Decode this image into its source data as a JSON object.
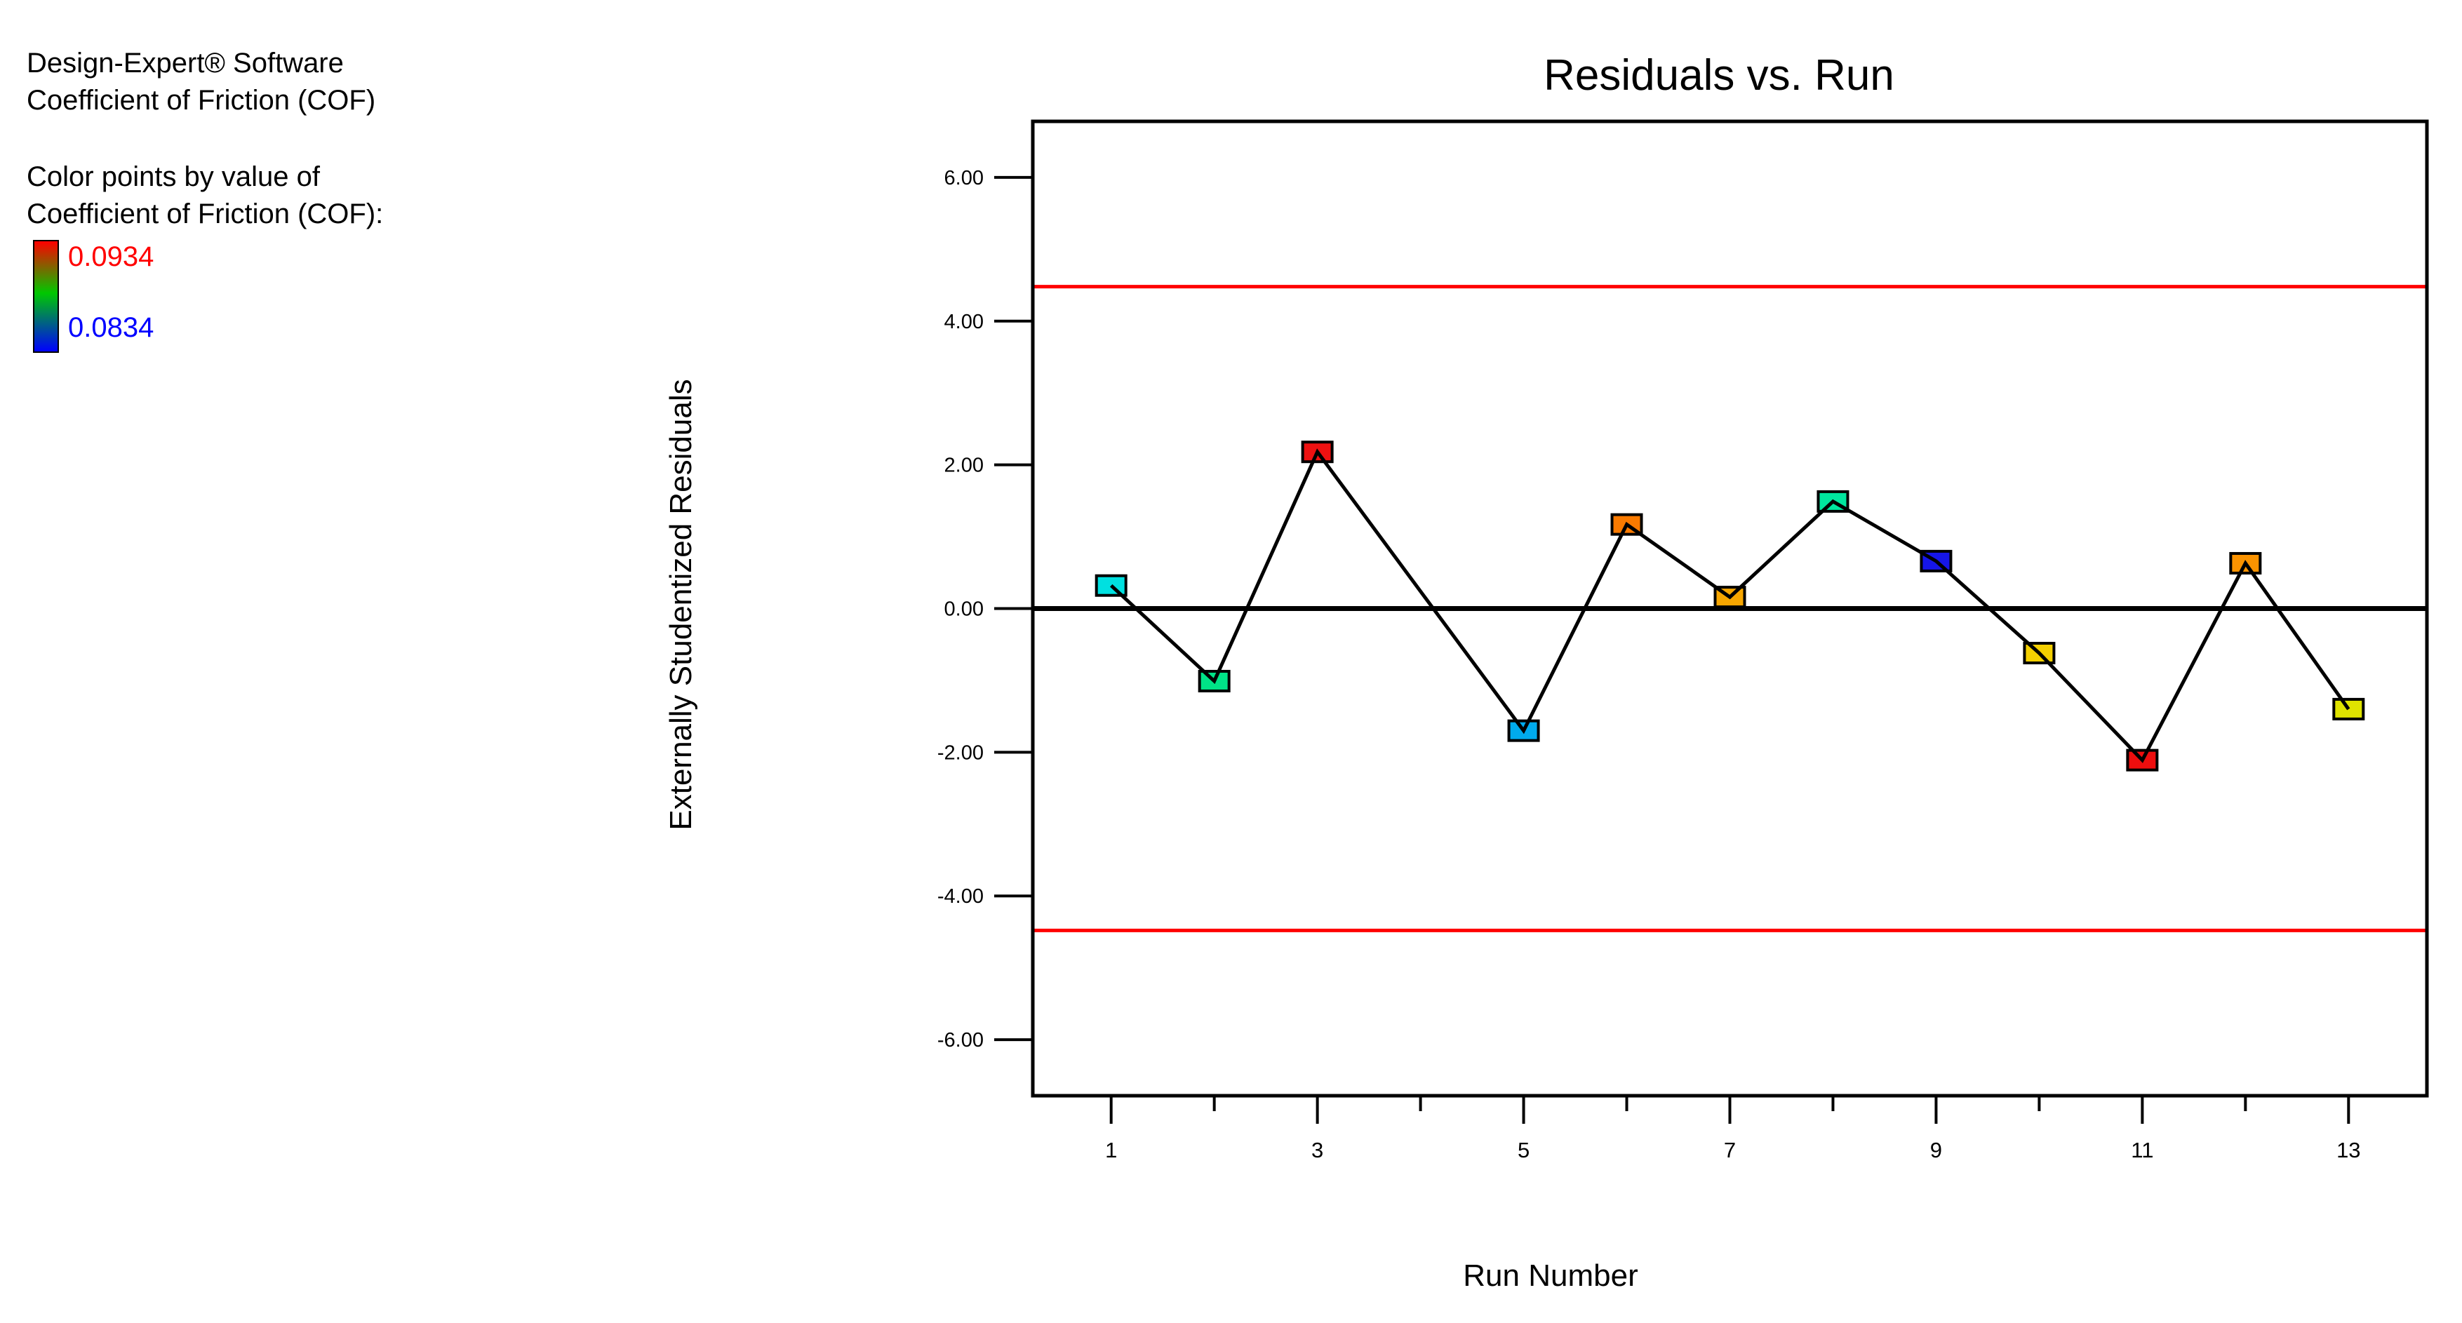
{
  "window": {
    "background": "#FFFFFF"
  },
  "info_panel": {
    "software": "Design-Expert® Software",
    "response": "Coefficient of Friction (COF)",
    "legend": {
      "caption_line1": "Color points by value of",
      "caption_line2": "Coefficient of Friction (COF):",
      "high_value": "0.0934",
      "low_value": "0.0834",
      "high_color": "#FF0000",
      "low_color": "#0000FF",
      "gradient_colors": [
        "#FF0000",
        "#00C800",
        "#0000FF"
      ]
    }
  },
  "chart_data": {
    "type": "line",
    "title": "Residuals vs. Run",
    "xlabel": "Run Number",
    "ylabel": "Externally Studentized Residuals",
    "xlim": [
      0.24,
      13.76
    ],
    "ylim": [
      -6.78,
      6.78
    ],
    "grid": "off",
    "x_major_ticks": [
      1,
      3,
      5,
      7,
      9,
      11,
      13
    ],
    "x_minor_ticks": [
      2,
      4,
      6,
      8,
      10,
      12
    ],
    "y_ticks": [
      {
        "value": 6,
        "label": "6.00"
      },
      {
        "value": 4,
        "label": "4.00"
      },
      {
        "value": 2,
        "label": "2.00"
      },
      {
        "value": 0,
        "label": "0.00"
      },
      {
        "value": -2,
        "label": "-2.00"
      },
      {
        "value": -4,
        "label": "-4.00"
      },
      {
        "value": -6,
        "label": "-6.00"
      }
    ],
    "zero_line_value": 0,
    "zero_line_color": "#000000",
    "limit_lines": [
      {
        "value": 4.48,
        "color": "#FF0000"
      },
      {
        "value": -4.48,
        "color": "#FF0000"
      }
    ],
    "line_color": "#000000",
    "marker": "square",
    "series": [
      {
        "name": "Externally Studentized Residuals",
        "points": [
          {
            "run": 1,
            "residual": 0.32,
            "color": "#00E0E0"
          },
          {
            "run": 2,
            "residual": -1.01,
            "color": "#00E387"
          },
          {
            "run": 3,
            "residual": 2.18,
            "color": "#EE1111"
          },
          {
            "run": 5,
            "residual": -1.7,
            "color": "#00ABEE"
          },
          {
            "run": 6,
            "residual": 1.17,
            "color": "#FA7A00"
          },
          {
            "run": 7,
            "residual": 0.16,
            "color": "#F7A600"
          },
          {
            "run": 8,
            "residual": 1.49,
            "color": "#00E69E"
          },
          {
            "run": 9,
            "residual": 0.66,
            "color": "#1616E8"
          },
          {
            "run": 10,
            "residual": -0.62,
            "color": "#F3CF00"
          },
          {
            "run": 11,
            "residual": -2.11,
            "color": "#ED0E0E"
          },
          {
            "run": 12,
            "residual": 0.63,
            "color": "#FB9300"
          },
          {
            "run": 13,
            "residual": -1.4,
            "color": "#DFE300"
          }
        ]
      }
    ]
  }
}
